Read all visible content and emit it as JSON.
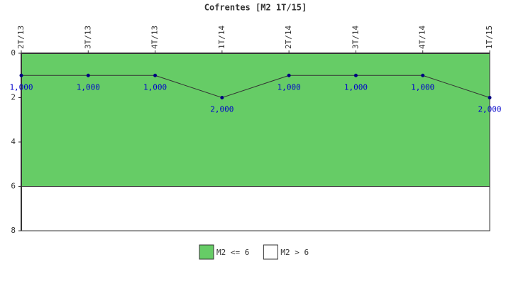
{
  "chart_data": {
    "type": "line",
    "title": "Cofrentes [M2 1T/15]",
    "categories": [
      "2T/13",
      "3T/13",
      "4T/13",
      "1T/14",
      "2T/14",
      "3T/14",
      "4T/14",
      "1T/15"
    ],
    "series": [
      {
        "name": "M2",
        "color": "#333333",
        "marker_color": "#000080",
        "values": [
          1,
          1,
          1,
          2,
          1,
          1,
          1,
          2
        ],
        "value_labels": [
          "1,000",
          "1,000",
          "1,000",
          "2,000",
          "1,000",
          "1,000",
          "1,000",
          "2,000"
        ]
      }
    ],
    "bands": [
      {
        "name": "M2 <= 6",
        "color": "#66cc66",
        "range": [
          0,
          6
        ]
      },
      {
        "name": "M2 > 6",
        "color": "#ffffff",
        "range": [
          6,
          8
        ]
      }
    ],
    "ylim": [
      0,
      8
    ],
    "yticks": [
      0,
      2,
      4,
      6,
      8
    ],
    "y_inverted": true
  }
}
